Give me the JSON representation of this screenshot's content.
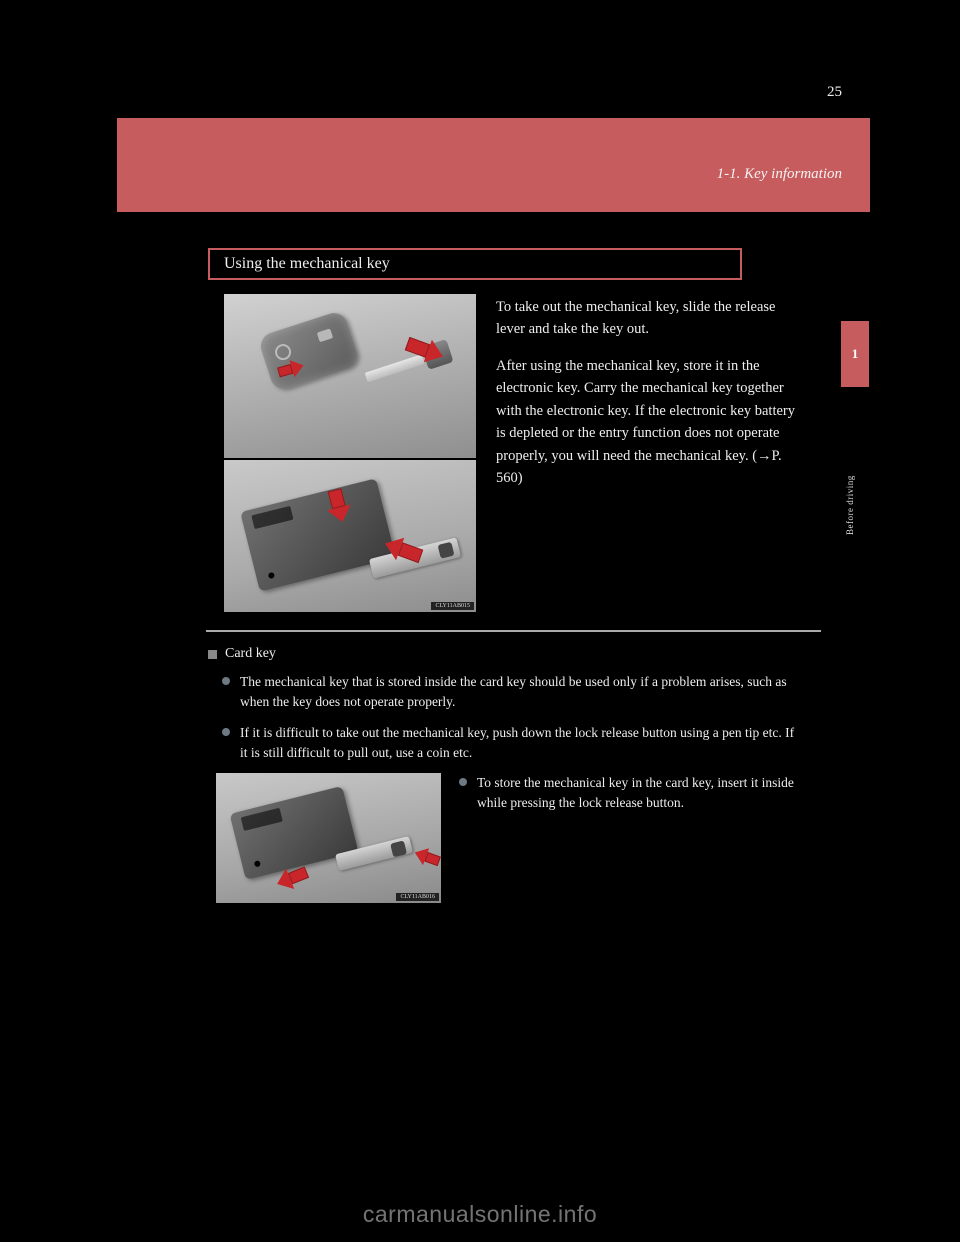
{
  "header": {
    "page_number": "25",
    "section": "1-1. Key information"
  },
  "side_tab": {
    "number": "1",
    "label": "Before driving"
  },
  "topic_title": "Using the mechanical key",
  "instruction": {
    "p1": "To take out the mechanical key, slide the release lever and take the key out.",
    "p2": "After using the mechanical key, store it in the electronic key. Carry the mechanical key together with the electronic key. If the electronic key battery is depleted or the entry function does not operate properly, you will need the mechanical key. (→P. 560)"
  },
  "image_ids": {
    "top": "CLY11AB015",
    "bottom": "CLY11AB016"
  },
  "info": {
    "heading": "Card key",
    "bullets": [
      "The mechanical key that is stored inside the card key should be used only if a problem arises, such as when the key does not operate properly.",
      "If it is difficult to take out the mechanical key, push down the lock release button using a pen tip etc. If it is still difficult to pull out, use a coin etc."
    ],
    "side_bullet": "To store the mechanical key in the card key, insert it inside while pressing the lock release button."
  },
  "watermark": "carmanualsonline.info",
  "colors": {
    "header": "#c65c5e",
    "border": "#c65c5e",
    "arrow": "#c8262a",
    "text": "#eeeeee",
    "bullet_round": "#6d7a84",
    "bullet_square": "#888888",
    "divider": "#aaaaaa"
  }
}
